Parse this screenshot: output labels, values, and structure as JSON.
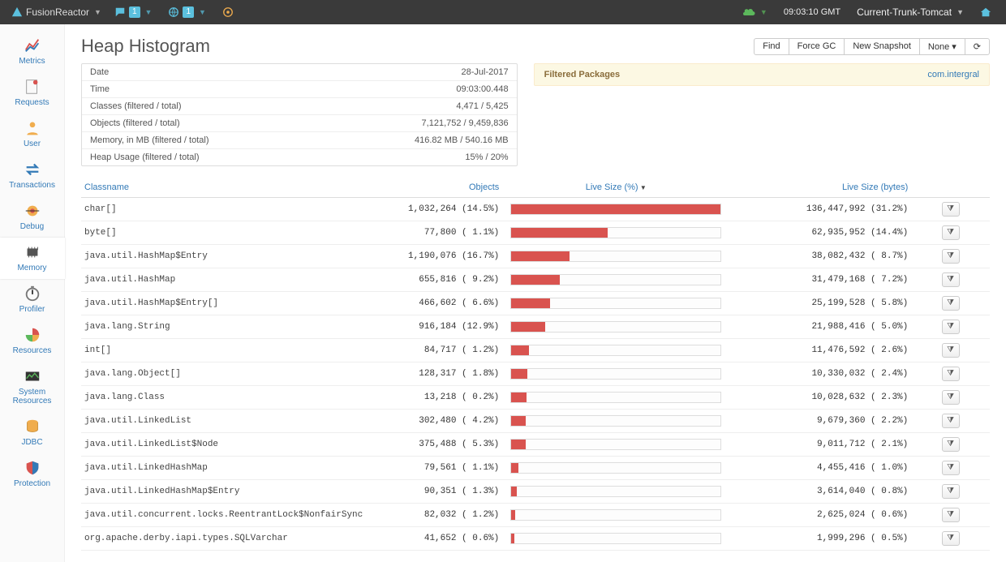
{
  "topbar": {
    "brand": "FusionReactor",
    "chat_badge": "1",
    "globe_badge": "1",
    "time": "09:03:10 GMT",
    "server": "Current-Trunk-Tomcat"
  },
  "sidebar": [
    {
      "key": "metrics",
      "label": "Metrics"
    },
    {
      "key": "requests",
      "label": "Requests"
    },
    {
      "key": "user",
      "label": "User"
    },
    {
      "key": "transactions",
      "label": "Transactions"
    },
    {
      "key": "debug",
      "label": "Debug"
    },
    {
      "key": "memory",
      "label": "Memory",
      "active": true
    },
    {
      "key": "profiler",
      "label": "Profiler"
    },
    {
      "key": "resources",
      "label": "Resources"
    },
    {
      "key": "system-resources",
      "label": "System Resources"
    },
    {
      "key": "jdbc",
      "label": "JDBC"
    },
    {
      "key": "protection",
      "label": "Protection"
    }
  ],
  "page": {
    "title": "Heap Histogram",
    "actions": {
      "find": "Find",
      "forcegc": "Force GC",
      "newsnap": "New Snapshot",
      "none": "None ▾",
      "refresh": "⟳"
    }
  },
  "summary": [
    {
      "k": "Date",
      "v": "28-Jul-2017"
    },
    {
      "k": "Time",
      "v": "09:03:00.448"
    },
    {
      "k": "Classes (filtered / total)",
      "v": "4,471 / 5,425"
    },
    {
      "k": "Objects (filtered / total)",
      "v": "7,121,752 / 9,459,836"
    },
    {
      "k": "Memory, in MB (filtered / total)",
      "v": "416.82 MB / 540.16 MB"
    },
    {
      "k": "Heap Usage (filtered / total)",
      "v": "15% / 20%"
    }
  ],
  "filtered": {
    "label": "Filtered Packages",
    "value": "com.intergral"
  },
  "columns": {
    "classname": "Classname",
    "objects": "Objects",
    "livepct": "Live Size (%)",
    "bytes": "Live Size (bytes)"
  },
  "sort_column": "livepct",
  "bar_color": "#d9534f",
  "rows": [
    {
      "cls": "char[]",
      "obj": "1,032,264",
      "obj_pct": "14.5%",
      "bar": 31.2,
      "bytes": "136,447,992",
      "bytes_pct": "31.2%"
    },
    {
      "cls": "byte[]",
      "obj": "77,800",
      "obj_pct": " 1.1%",
      "bar": 14.4,
      "bytes": "62,935,952",
      "bytes_pct": "14.4%"
    },
    {
      "cls": "java.util.HashMap$Entry",
      "obj": "1,190,076",
      "obj_pct": "16.7%",
      "bar": 8.7,
      "bytes": "38,082,432",
      "bytes_pct": " 8.7%"
    },
    {
      "cls": "java.util.HashMap",
      "obj": "655,816",
      "obj_pct": " 9.2%",
      "bar": 7.2,
      "bytes": "31,479,168",
      "bytes_pct": " 7.2%"
    },
    {
      "cls": "java.util.HashMap$Entry[]",
      "obj": "466,602",
      "obj_pct": " 6.6%",
      "bar": 5.8,
      "bytes": "25,199,528",
      "bytes_pct": " 5.8%"
    },
    {
      "cls": "java.lang.String",
      "obj": "916,184",
      "obj_pct": "12.9%",
      "bar": 5.0,
      "bytes": "21,988,416",
      "bytes_pct": " 5.0%"
    },
    {
      "cls": "int[]",
      "obj": "84,717",
      "obj_pct": " 1.2%",
      "bar": 2.6,
      "bytes": "11,476,592",
      "bytes_pct": " 2.6%"
    },
    {
      "cls": "java.lang.Object[]",
      "obj": "128,317",
      "obj_pct": " 1.8%",
      "bar": 2.4,
      "bytes": "10,330,032",
      "bytes_pct": " 2.4%"
    },
    {
      "cls": "java.lang.Class",
      "obj": "13,218",
      "obj_pct": " 0.2%",
      "bar": 2.3,
      "bytes": "10,028,632",
      "bytes_pct": " 2.3%"
    },
    {
      "cls": "java.util.LinkedList",
      "obj": "302,480",
      "obj_pct": " 4.2%",
      "bar": 2.2,
      "bytes": "9,679,360",
      "bytes_pct": " 2.2%"
    },
    {
      "cls": "java.util.LinkedList$Node",
      "obj": "375,488",
      "obj_pct": " 5.3%",
      "bar": 2.1,
      "bytes": "9,011,712",
      "bytes_pct": " 2.1%"
    },
    {
      "cls": "java.util.LinkedHashMap",
      "obj": "79,561",
      "obj_pct": " 1.1%",
      "bar": 1.0,
      "bytes": "4,455,416",
      "bytes_pct": " 1.0%"
    },
    {
      "cls": "java.util.LinkedHashMap$Entry",
      "obj": "90,351",
      "obj_pct": " 1.3%",
      "bar": 0.8,
      "bytes": "3,614,040",
      "bytes_pct": " 0.8%"
    },
    {
      "cls": "java.util.concurrent.locks.ReentrantLock$NonfairSync",
      "obj": "82,032",
      "obj_pct": " 1.2%",
      "bar": 0.6,
      "bytes": "2,625,024",
      "bytes_pct": " 0.6%"
    },
    {
      "cls": "org.apache.derby.iapi.types.SQLVarchar",
      "obj": "41,652",
      "obj_pct": " 0.6%",
      "bar": 0.5,
      "bytes": "1,999,296",
      "bytes_pct": " 0.5%"
    }
  ]
}
